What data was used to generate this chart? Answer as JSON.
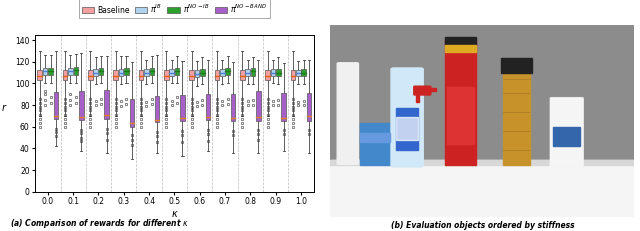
{
  "kappa_values": [
    0.0,
    0.1,
    0.2,
    0.3,
    0.4,
    0.5,
    0.6,
    0.7,
    0.8,
    0.9,
    1.0
  ],
  "series_labels": [
    "Baseline",
    "$\\pi^{IB}$",
    "$\\pi^{NO-IB}$",
    "$\\pi^{NO-BAND}$"
  ],
  "colors": [
    "#f4a0a0",
    "#b0d4f0",
    "#2ca02c",
    "#a660c8"
  ],
  "median_colors": [
    "#e06010",
    "#5080d0",
    "#1a7a1a",
    "#e08020"
  ],
  "ylabel": "$r$",
  "xlabel": "$\\kappa$",
  "caption_left": "(a) Comparison of rewards for different $\\kappa$",
  "caption_right": "(b) Evaluation objects ordered by stiffness",
  "ylim": [
    0,
    145
  ],
  "yticks": [
    0,
    20,
    40,
    60,
    80,
    100,
    120,
    140
  ],
  "baseline": {
    "q1": 103,
    "q3": 112,
    "median": 107,
    "wlo": 70,
    "whi": 130,
    "out": [
      60,
      63,
      67,
      71,
      75,
      78,
      82,
      86
    ]
  },
  "ib": [
    {
      "q1": 108,
      "q3": 114,
      "median": 111,
      "wlo": 100,
      "whi": 126,
      "out": [
        80,
        85,
        90,
        93
      ]
    },
    {
      "q1": 108,
      "q3": 114,
      "median": 111,
      "wlo": 100,
      "whi": 126,
      "out": [
        80,
        85,
        90
      ]
    },
    {
      "q1": 107,
      "q3": 113,
      "median": 110,
      "wlo": 99,
      "whi": 124,
      "out": [
        80,
        84
      ]
    },
    {
      "q1": 107,
      "q3": 113,
      "median": 110,
      "wlo": 99,
      "whi": 125,
      "out": [
        79,
        84
      ]
    },
    {
      "q1": 107,
      "q3": 113,
      "median": 110,
      "wlo": 99,
      "whi": 122,
      "out": [
        79,
        83
      ]
    },
    {
      "q1": 107,
      "q3": 113,
      "median": 110,
      "wlo": 100,
      "whi": 122,
      "out": [
        80,
        84
      ]
    },
    {
      "q1": 106,
      "q3": 112,
      "median": 109,
      "wlo": 98,
      "whi": 121,
      "out": [
        79,
        83
      ]
    },
    {
      "q1": 107,
      "q3": 113,
      "median": 110,
      "wlo": 99,
      "whi": 122,
      "out": [
        80,
        84
      ]
    },
    {
      "q1": 107,
      "q3": 113,
      "median": 110,
      "wlo": 99,
      "whi": 122,
      "out": [
        80,
        84
      ]
    },
    {
      "q1": 107,
      "q3": 113,
      "median": 110,
      "wlo": 100,
      "whi": 122,
      "out": [
        80,
        84
      ]
    },
    {
      "q1": 107,
      "q3": 112,
      "median": 110,
      "wlo": 99,
      "whi": 121,
      "out": [
        80,
        83
      ]
    }
  ],
  "noib": [
    {
      "q1": 108,
      "q3": 114,
      "median": 111,
      "wlo": 100,
      "whi": 126,
      "out": [
        82,
        87
      ]
    },
    {
      "q1": 108,
      "q3": 115,
      "median": 112,
      "wlo": 100,
      "whi": 127,
      "out": [
        82,
        87
      ]
    },
    {
      "q1": 108,
      "q3": 114,
      "median": 111,
      "wlo": 100,
      "whi": 125,
      "out": [
        81,
        86
      ]
    },
    {
      "q1": 108,
      "q3": 114,
      "median": 111,
      "wlo": 100,
      "whi": 125,
      "out": [
        81,
        86
      ]
    },
    {
      "q1": 108,
      "q3": 114,
      "median": 111,
      "wlo": 100,
      "whi": 125,
      "out": [
        81,
        86
      ]
    },
    {
      "q1": 108,
      "q3": 114,
      "median": 111,
      "wlo": 100,
      "whi": 125,
      "out": [
        82,
        87
      ]
    },
    {
      "q1": 107,
      "q3": 113,
      "median": 110,
      "wlo": 99,
      "whi": 124,
      "out": [
        80,
        85
      ]
    },
    {
      "q1": 108,
      "q3": 114,
      "median": 111,
      "wlo": 100,
      "whi": 125,
      "out": [
        81,
        86
      ]
    },
    {
      "q1": 107,
      "q3": 114,
      "median": 111,
      "wlo": 99,
      "whi": 124,
      "out": [
        80,
        85
      ]
    },
    {
      "q1": 107,
      "q3": 113,
      "median": 110,
      "wlo": 99,
      "whi": 124,
      "out": [
        80,
        85
      ]
    },
    {
      "q1": 107,
      "q3": 113,
      "median": 110,
      "wlo": 99,
      "whi": 122,
      "out": [
        80,
        84
      ]
    }
  ],
  "noband": [
    {
      "q1": 67,
      "q3": 92,
      "median": 70,
      "wlo": 42,
      "whi": 130,
      "out": [
        58,
        55,
        51
      ]
    },
    {
      "q1": 66,
      "q3": 93,
      "median": 69,
      "wlo": 38,
      "whi": 128,
      "out": [
        57,
        54,
        50,
        47
      ]
    },
    {
      "q1": 67,
      "q3": 94,
      "median": 71,
      "wlo": 36,
      "whi": 125,
      "out": [
        58,
        54,
        48
      ]
    },
    {
      "q1": 60,
      "q3": 86,
      "median": 63,
      "wlo": 30,
      "whi": 120,
      "out": [
        52,
        48,
        43
      ]
    },
    {
      "q1": 64,
      "q3": 88,
      "median": 66,
      "wlo": 36,
      "whi": 126,
      "out": [
        55,
        51,
        46
      ]
    },
    {
      "q1": 65,
      "q3": 89,
      "median": 68,
      "wlo": 33,
      "whi": 121,
      "out": [
        56,
        52,
        46
      ]
    },
    {
      "q1": 66,
      "q3": 90,
      "median": 69,
      "wlo": 38,
      "whi": 122,
      "out": [
        57,
        53,
        47
      ]
    },
    {
      "q1": 65,
      "q3": 90,
      "median": 68,
      "wlo": 36,
      "whi": 120,
      "out": [
        56,
        52
      ]
    },
    {
      "q1": 65,
      "q3": 93,
      "median": 69,
      "wlo": 36,
      "whi": 122,
      "out": [
        57,
        53,
        48
      ]
    },
    {
      "q1": 65,
      "q3": 91,
      "median": 68,
      "wlo": 38,
      "whi": 119,
      "out": [
        57,
        53
      ]
    },
    {
      "q1": 65,
      "q3": 91,
      "median": 70,
      "wlo": 36,
      "whi": 122,
      "out": [
        57,
        53
      ]
    }
  ],
  "photo_bg": "#a0a0a0",
  "photo_shelf": "#e8e8e8",
  "photo_floor": "#f0f0f0"
}
